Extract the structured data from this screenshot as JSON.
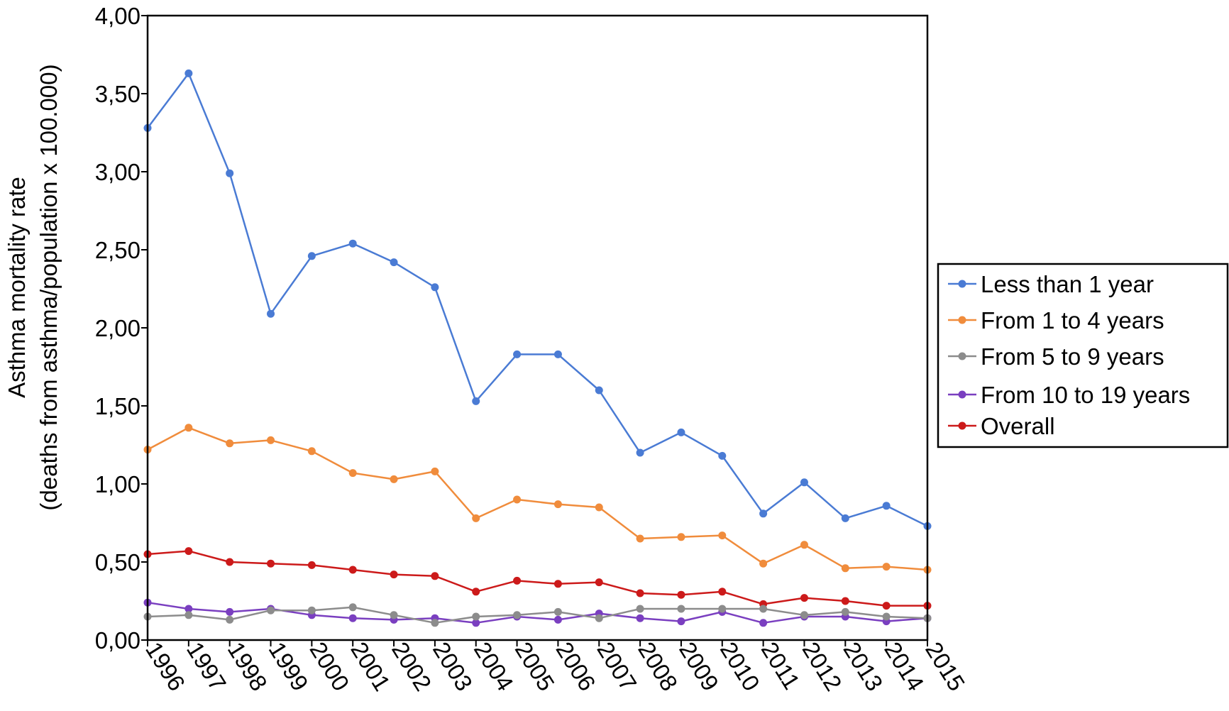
{
  "chart_data": {
    "type": "line",
    "title": "",
    "xlabel": "",
    "ylabel_line1": "Asthma mortality rate",
    "ylabel_line2": "(deaths from asthma/population x 100.000)",
    "ylim": [
      0,
      4
    ],
    "yticks": [
      "0,00",
      "0,50",
      "1,00",
      "1,50",
      "2,00",
      "2,50",
      "3,00",
      "3,50",
      "4,00"
    ],
    "grid": false,
    "legend_position": "right",
    "categories": [
      "1996",
      "1997",
      "1998",
      "1999",
      "2000",
      "2001",
      "2002",
      "2003",
      "2004",
      "2005",
      "2006",
      "2007",
      "2008",
      "2009",
      "2010",
      "2011",
      "2012",
      "2013",
      "2014",
      "2015"
    ],
    "series": [
      {
        "name": "Less than 1 year",
        "color": "#4a7bd4",
        "values": [
          3.28,
          3.63,
          2.99,
          2.09,
          2.46,
          2.54,
          2.42,
          2.26,
          1.53,
          1.83,
          1.83,
          1.6,
          1.2,
          1.33,
          1.18,
          0.81,
          1.01,
          0.78,
          0.86,
          0.73
        ]
      },
      {
        "name": "From 1 to 4 years",
        "color": "#f08c3c",
        "values": [
          1.22,
          1.36,
          1.26,
          1.28,
          1.21,
          1.07,
          1.03,
          1.08,
          0.78,
          0.9,
          0.87,
          0.85,
          0.65,
          0.66,
          0.67,
          0.49,
          0.61,
          0.46,
          0.47,
          0.45
        ]
      },
      {
        "name": "From 5 to 9 years",
        "color": "#8c8c8c",
        "values": [
          0.15,
          0.16,
          0.13,
          0.19,
          0.19,
          0.21,
          0.16,
          0.11,
          0.15,
          0.16,
          0.18,
          0.14,
          0.2,
          0.2,
          0.2,
          0.2,
          0.16,
          0.18,
          0.15,
          0.14
        ]
      },
      {
        "name": "From 10 to 19 years",
        "color": "#7a3fc0",
        "values": [
          0.24,
          0.2,
          0.18,
          0.2,
          0.16,
          0.14,
          0.13,
          0.14,
          0.11,
          0.15,
          0.13,
          0.17,
          0.14,
          0.12,
          0.18,
          0.11,
          0.15,
          0.15,
          0.12,
          0.14
        ]
      },
      {
        "name": "Overall",
        "color": "#cc1a1a",
        "values": [
          0.55,
          0.57,
          0.5,
          0.49,
          0.48,
          0.45,
          0.42,
          0.41,
          0.31,
          0.38,
          0.36,
          0.37,
          0.3,
          0.29,
          0.31,
          0.23,
          0.27,
          0.25,
          0.22,
          0.22
        ]
      }
    ]
  }
}
